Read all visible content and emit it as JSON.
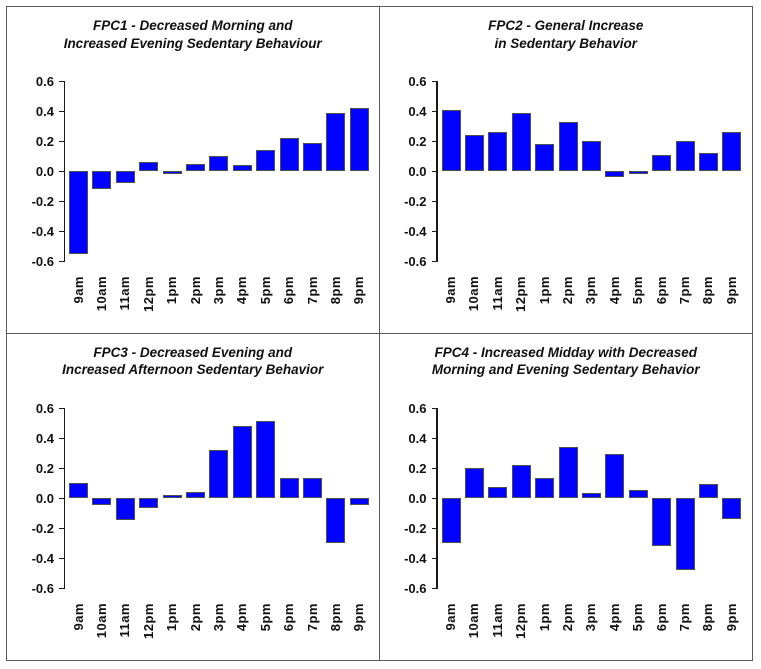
{
  "figure": {
    "background": "#ffffff",
    "border_color": "#5b5b5b",
    "bar_fill": "#0101ff",
    "bar_border": "#4f4f4f",
    "axis_color": "#1a1a1a"
  },
  "chart_data": [
    {
      "type": "bar",
      "panel_id": "FPC1",
      "title": "FPC1 - Decreased Morning and Increased Evening Sedentary Behaviour",
      "title_lines": [
        "FPC1 - Decreased Morning and",
        "Increased Evening Sedentary Behaviour"
      ],
      "categories": [
        "9am",
        "10am",
        "11am",
        "12pm",
        "1pm",
        "2pm",
        "3pm",
        "4pm",
        "5pm",
        "6pm",
        "7pm",
        "8pm",
        "9pm"
      ],
      "values": [
        -0.55,
        -0.12,
        -0.08,
        0.06,
        -0.02,
        0.05,
        0.1,
        0.04,
        0.14,
        0.22,
        0.19,
        0.39,
        0.42
      ],
      "xlabel": "",
      "ylabel": "",
      "ylim": [
        -0.6,
        0.6
      ],
      "yticks": [
        0.6,
        0.4,
        0.2,
        0.0,
        -0.2,
        -0.4,
        -0.6
      ],
      "grid": false,
      "legend": null
    },
    {
      "type": "bar",
      "panel_id": "FPC2",
      "title": "FPC2 - General Increase in Sedentary Behavior",
      "title_lines": [
        "FPC2 - General Increase",
        "in Sedentary Behavior"
      ],
      "categories": [
        "9am",
        "10am",
        "11am",
        "12pm",
        "1pm",
        "2pm",
        "3pm",
        "4pm",
        "5pm",
        "6pm",
        "7pm",
        "8pm",
        "9pm"
      ],
      "values": [
        0.41,
        0.24,
        0.26,
        0.39,
        0.18,
        0.33,
        0.2,
        -0.04,
        -0.02,
        0.11,
        0.2,
        0.12,
        0.26
      ],
      "xlabel": "",
      "ylabel": "",
      "ylim": [
        -0.6,
        0.6
      ],
      "yticks": [
        0.6,
        0.4,
        0.2,
        0.0,
        -0.2,
        -0.4,
        -0.6
      ],
      "grid": false,
      "legend": null
    },
    {
      "type": "bar",
      "panel_id": "FPC3",
      "title": "FPC3 - Decreased Evening and Increased Afternoon Sedentary Behavior",
      "title_lines": [
        "FPC3 - Decreased Evening and",
        "Increased Afternoon Sedentary Behavior"
      ],
      "categories": [
        "9am",
        "10am",
        "11am",
        "12pm",
        "1pm",
        "2pm",
        "3pm",
        "4pm",
        "5pm",
        "6pm",
        "7pm",
        "8pm",
        "9pm"
      ],
      "values": [
        0.1,
        -0.05,
        -0.15,
        -0.07,
        0.02,
        0.04,
        0.32,
        0.48,
        0.51,
        0.13,
        0.13,
        -0.3,
        -0.05
      ],
      "xlabel": "",
      "ylabel": "",
      "ylim": [
        -0.6,
        0.6
      ],
      "yticks": [
        0.6,
        0.4,
        0.2,
        0.0,
        -0.2,
        -0.4,
        -0.6
      ],
      "grid": false,
      "legend": null
    },
    {
      "type": "bar",
      "panel_id": "FPC4",
      "title": "FPC4 - Increased Midday with Decreased Morning and Evening Sedentary Behavior",
      "title_lines": [
        "FPC4 - Increased Midday with Decreased",
        "Morning and Evening Sedentary Behavior"
      ],
      "categories": [
        "9am",
        "10am",
        "11am",
        "12pm",
        "1pm",
        "2pm",
        "3pm",
        "4pm",
        "5pm",
        "6pm",
        "7pm",
        "8pm",
        "9pm"
      ],
      "values": [
        -0.3,
        0.2,
        0.07,
        0.22,
        0.13,
        0.34,
        0.03,
        0.29,
        0.05,
        -0.32,
        -0.48,
        0.09,
        -0.14
      ],
      "xlabel": "",
      "ylabel": "",
      "ylim": [
        -0.6,
        0.6
      ],
      "yticks": [
        0.6,
        0.4,
        0.2,
        0.0,
        -0.2,
        -0.4,
        -0.6
      ],
      "grid": false,
      "legend": null
    }
  ]
}
